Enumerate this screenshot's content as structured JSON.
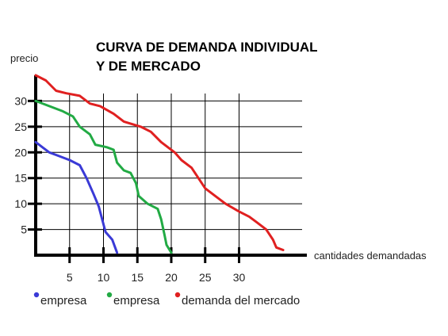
{
  "chart_data": {
    "type": "line",
    "title_lines": [
      "CURVA DE DEMANDA INDIVIDUAL",
      "Y DE MERCADO"
    ],
    "xlabel": "cantidades demandadas",
    "ylabel": "precio",
    "x_ticks": [
      5,
      10,
      15,
      20,
      25,
      30
    ],
    "y_ticks": [
      5,
      10,
      15,
      20,
      25,
      30
    ],
    "xlim": [
      0,
      40
    ],
    "ylim": [
      0,
      35
    ],
    "grid": true,
    "legend_position": "bottom",
    "series": [
      {
        "name": "empresa",
        "color": "#3a3ad6",
        "points": [
          [
            0,
            22
          ],
          [
            1,
            21
          ],
          [
            2,
            20
          ],
          [
            3,
            19.5
          ],
          [
            5,
            18.5
          ],
          [
            6.5,
            17.5
          ],
          [
            7.5,
            15
          ],
          [
            8.5,
            12
          ],
          [
            9.3,
            9.5
          ],
          [
            9.8,
            7
          ],
          [
            10.3,
            4.5
          ],
          [
            11.3,
            3
          ],
          [
            12,
            0.5
          ]
        ]
      },
      {
        "name": "empresa",
        "color": "#22aa44",
        "points": [
          [
            0,
            30
          ],
          [
            2,
            29
          ],
          [
            4,
            28
          ],
          [
            5.5,
            27
          ],
          [
            6.5,
            25
          ],
          [
            8,
            23.5
          ],
          [
            8.8,
            21.5
          ],
          [
            10.5,
            21
          ],
          [
            11.5,
            20.5
          ],
          [
            12,
            18
          ],
          [
            13,
            16.5
          ],
          [
            14,
            16
          ],
          [
            14.8,
            14
          ],
          [
            15.2,
            11.5
          ],
          [
            16.5,
            10
          ],
          [
            18,
            9
          ],
          [
            18.5,
            7
          ],
          [
            19,
            4
          ],
          [
            19.3,
            2
          ],
          [
            20,
            0.5
          ]
        ]
      },
      {
        "name": "demanda del mercado",
        "color": "#e02020",
        "points": [
          [
            0,
            35
          ],
          [
            1.5,
            34
          ],
          [
            3,
            32
          ],
          [
            4.5,
            31.5
          ],
          [
            6.5,
            31
          ],
          [
            8,
            29.5
          ],
          [
            9.5,
            29
          ],
          [
            11.5,
            27.5
          ],
          [
            13,
            26
          ],
          [
            15.5,
            25
          ],
          [
            17,
            24
          ],
          [
            18.5,
            22
          ],
          [
            20.5,
            20
          ],
          [
            21.5,
            18.5
          ],
          [
            23,
            17
          ],
          [
            24,
            15
          ],
          [
            25,
            13
          ],
          [
            26.5,
            11.5
          ],
          [
            28,
            10
          ],
          [
            30,
            8.5
          ],
          [
            31.5,
            7.5
          ],
          [
            32.5,
            6.5
          ],
          [
            34,
            5
          ],
          [
            35,
            3
          ],
          [
            35.5,
            1.5
          ],
          [
            36.5,
            1
          ]
        ]
      }
    ]
  }
}
